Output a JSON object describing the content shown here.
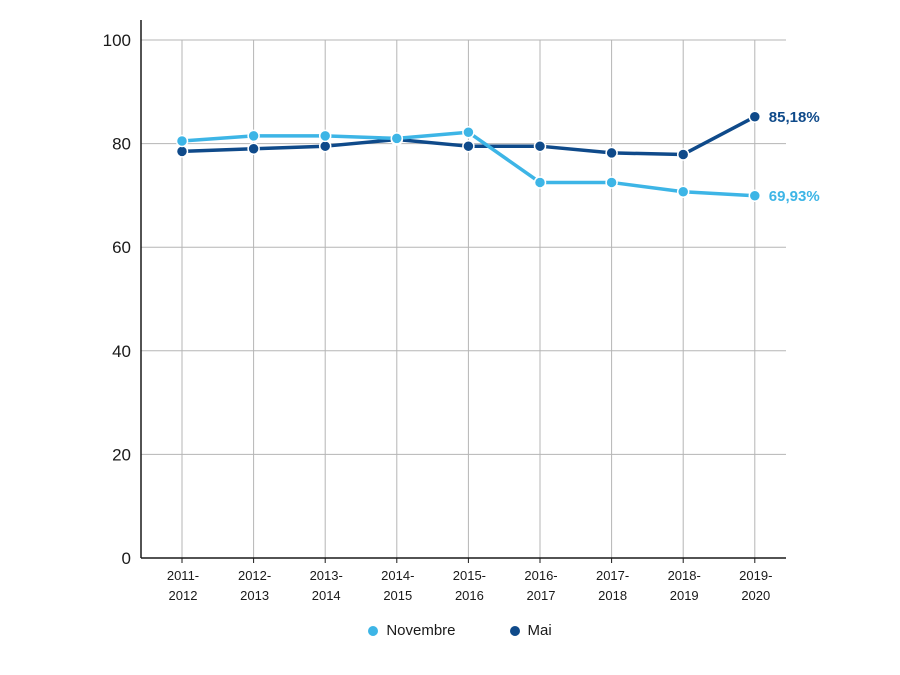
{
  "chart_data": {
    "type": "line",
    "x": [
      "2011-2012",
      "2012-2013",
      "2013-2014",
      "2014-2015",
      "2015-2016",
      "2016-2017",
      "2017-2018",
      "2018-2019",
      "2019-2020"
    ],
    "x_tick_labels": [
      [
        "2011-",
        "2012"
      ],
      [
        "2012-",
        "2013"
      ],
      [
        "2013-",
        "2014"
      ],
      [
        "2014-",
        "2015"
      ],
      [
        "2015-",
        "2016"
      ],
      [
        "2016-",
        "2017"
      ],
      [
        "2017-",
        "2018"
      ],
      [
        "2018-",
        "2019"
      ],
      [
        "2019-",
        "2020"
      ]
    ],
    "series": [
      {
        "name": "Novembre",
        "color": "#3db5e6",
        "values": [
          80.5,
          81.5,
          81.5,
          81.0,
          82.2,
          72.5,
          72.5,
          70.7,
          69.93
        ],
        "end_label": "69,93%"
      },
      {
        "name": "Mai",
        "color": "#0f4a8a",
        "values": [
          78.5,
          79.0,
          79.5,
          80.8,
          79.5,
          79.5,
          78.2,
          77.9,
          85.18
        ],
        "end_label": "85,18%"
      }
    ],
    "ylim": [
      0,
      100
    ],
    "y_ticks": [
      0,
      20,
      40,
      60,
      80,
      100
    ],
    "grid": true,
    "legend_position": "bottom-center",
    "title": "",
    "xlabel": "",
    "ylabel": ""
  }
}
